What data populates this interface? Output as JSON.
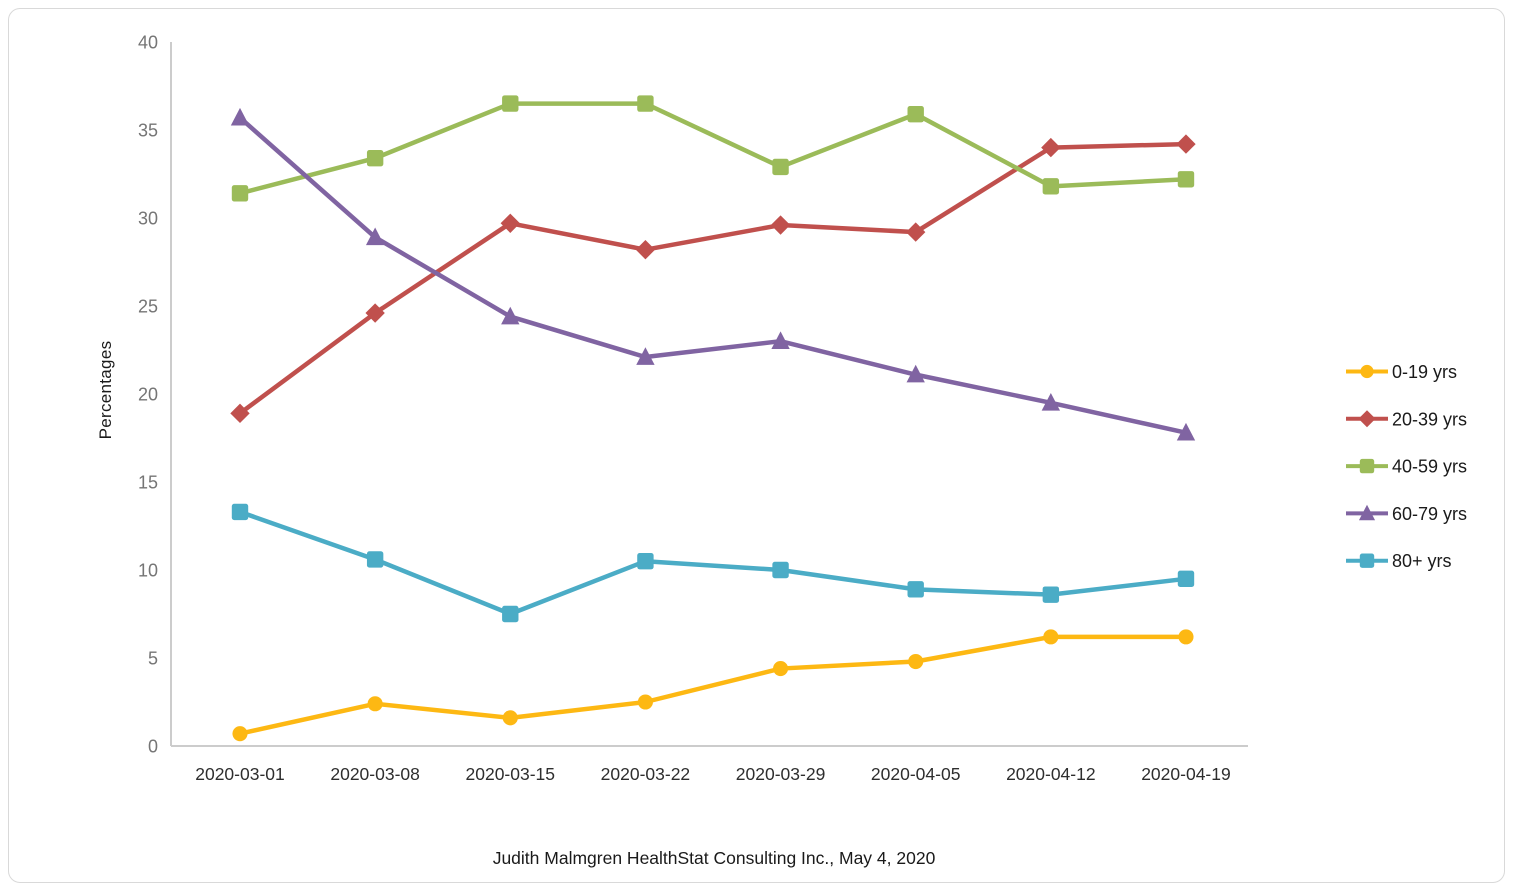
{
  "frame": {
    "background": "#ffffff",
    "border_color": "#d9d9d9"
  },
  "caption": {
    "text": "Judith Malmgren HealthStat Consulting Inc., May 4, 2020"
  },
  "chart_data": {
    "type": "line",
    "title": "",
    "xlabel": "",
    "ylabel": "Percentages",
    "ylim": [
      0,
      40
    ],
    "ytick_step": 5,
    "yticks": [
      "0",
      "5",
      "10",
      "15",
      "20",
      "25",
      "30",
      "35",
      "40"
    ],
    "grid": false,
    "legend_position": "right",
    "axis_color": "#cccccc",
    "ytick_color": "#757575",
    "xtick_color": "#2e2e2e",
    "legend_text_color": "#1a1a1a",
    "x": [
      "2020-03-01",
      "2020-03-08",
      "2020-03-15",
      "2020-03-22",
      "2020-03-29",
      "2020-04-05",
      "2020-04-12",
      "2020-04-19"
    ],
    "series": [
      {
        "name": "0-19 yrs",
        "color": "#FDB813",
        "marker": "circle",
        "values": [
          0.7,
          2.4,
          1.6,
          2.5,
          4.4,
          4.8,
          6.2,
          6.2
        ]
      },
      {
        "name": "20-39 yrs",
        "color": "#C0504D",
        "marker": "diamond",
        "values": [
          18.9,
          24.6,
          29.7,
          28.2,
          29.6,
          29.2,
          34.0,
          34.2
        ]
      },
      {
        "name": "40-59 yrs",
        "color": "#9BBB59",
        "marker": "square",
        "values": [
          31.4,
          33.4,
          36.5,
          36.5,
          32.9,
          35.9,
          31.8,
          32.2
        ]
      },
      {
        "name": "60-79 yrs",
        "color": "#8064A2",
        "marker": "triangle",
        "values": [
          35.7,
          28.9,
          24.4,
          22.1,
          23.0,
          21.1,
          19.5,
          17.8
        ]
      },
      {
        "name": "80+ yrs",
        "color": "#4BACC6",
        "marker": "square",
        "values": [
          13.3,
          10.6,
          7.5,
          10.5,
          10.0,
          8.9,
          8.6,
          9.5
        ]
      }
    ]
  }
}
